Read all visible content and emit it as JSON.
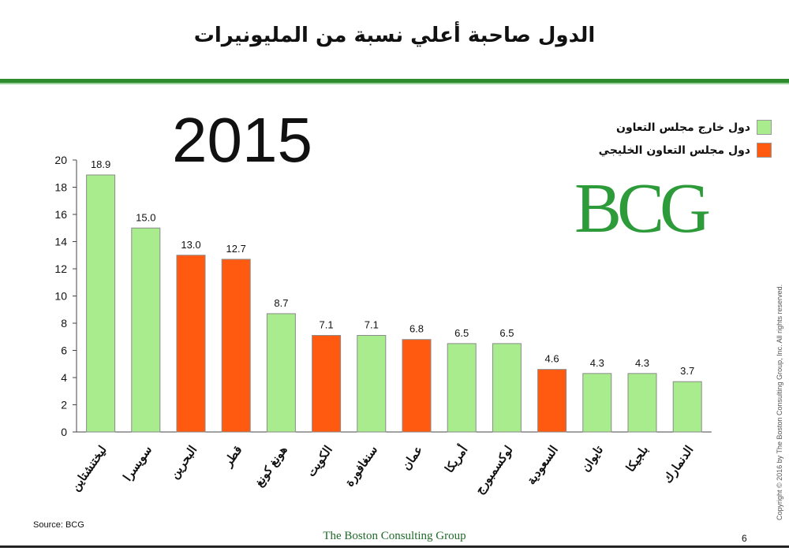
{
  "header": {
    "title": "الدول صاحبة أعلي نسبة من المليونيرات"
  },
  "year_label": "2015",
  "legend": {
    "items": [
      {
        "label": "دول خارج مجلس التعاون",
        "color": "#a8ec8e"
      },
      {
        "label": "دول مجلس التعاون الخليجي",
        "color": "#ff5a0f"
      }
    ]
  },
  "logo_text": "BCG",
  "source": "Source: BCG",
  "footer": "The Boston Consulting Group",
  "page_number": "6",
  "copyright": "Copyright © 2016 by The Boston Consulting Group, Inc. All rights reserved.",
  "chart_data": {
    "type": "bar",
    "categories": [
      "ليختنشتاين",
      "سويسرا",
      "البحرين",
      "قطر",
      "هونغ كونغ",
      "الكويت",
      "سنغافورة",
      "عمان",
      "أمريكا",
      "لوكسمبورج",
      "السعودية",
      "تايوان",
      "بلجيكا",
      "الدنمارك"
    ],
    "values": [
      18.9,
      15.0,
      13.0,
      12.7,
      8.7,
      7.1,
      7.1,
      6.8,
      6.5,
      6.5,
      4.6,
      4.3,
      4.3,
      3.7
    ],
    "value_labels": [
      "18.9",
      "15.0",
      "13.0",
      "12.7",
      "8.7",
      "7.1",
      "7.1",
      "6.8",
      "6.5",
      "6.5",
      "4.6",
      "4.3",
      "4.3",
      "3.7"
    ],
    "group": [
      "outside",
      "outside",
      "gcc",
      "gcc",
      "outside",
      "gcc",
      "outside",
      "gcc",
      "outside",
      "outside",
      "gcc",
      "outside",
      "outside",
      "outside"
    ],
    "colors": {
      "outside": "#a8ec8e",
      "gcc": "#ff5a0f"
    },
    "ylim": [
      0,
      20
    ],
    "yticks": [
      "0",
      "2",
      "4",
      "6",
      "8",
      "10",
      "12",
      "14",
      "16",
      "18",
      "20"
    ],
    "grid": false
  }
}
